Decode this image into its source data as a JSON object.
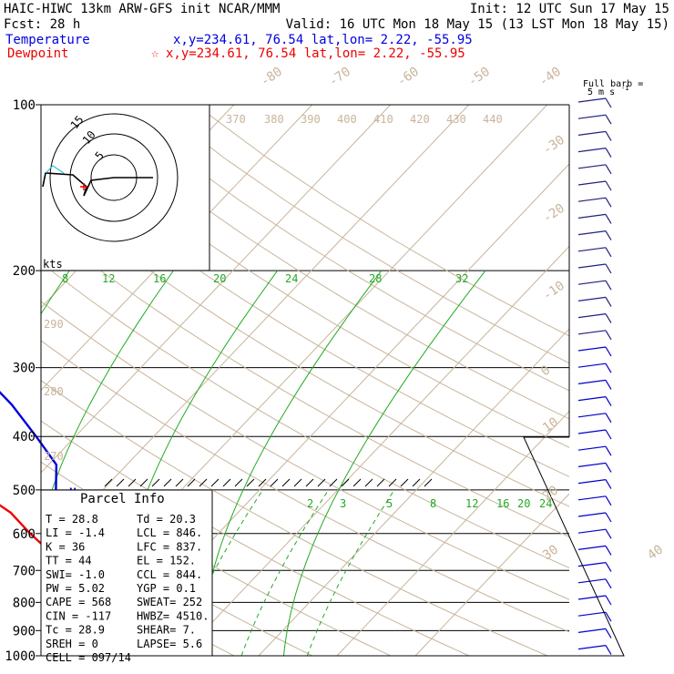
{
  "header": {
    "left_line1": "HAIC-HIWC 13km ARW-GFS init   NCAR/MMM",
    "right_line1": "Init: 12 UTC Sun 17 May 15",
    "left_line2": "Fcst:    28 h",
    "right_line2": "Valid: 16 UTC Mon 18 May 15 (13 LST Mon 18 May 15)",
    "temp_label": "Temperature",
    "temp_loc": "x,y=234.61, 76.54    lat,lon=  2.22, -55.95",
    "dew_label": "Dewpoint",
    "dew_loc": "x,y=234.61, 76.54    lat,lon=  2.22, -55.95",
    "barb_title1": "Full barb =",
    "barb_title2": "5 m s",
    "barb_title_sup": "-1"
  },
  "colors": {
    "temperature": "#0000dd",
    "dewpoint": "#ee0000",
    "isotherm": "#c8b49a",
    "mixing_ratio": "#22aa22",
    "adiabat": "#c8b49a",
    "hodograph": "#000000",
    "barb": "#0000cc",
    "barb_upper": "#202080"
  },
  "chart_data": {
    "type": "line",
    "subtype": "skew-T log-P sounding",
    "pressure_ticks": [
      "100",
      "200",
      "300",
      "400",
      "500",
      "600",
      "700",
      "800",
      "900",
      "1000"
    ],
    "pressure_ylim": [
      100,
      1000
    ],
    "isotherm_labels": [
      "-80",
      "-70",
      "-60",
      "-50",
      "-40",
      "-30",
      "-20",
      "-10",
      "0",
      "10",
      "20",
      "30",
      "40"
    ],
    "theta_labels": [
      "370",
      "380",
      "390",
      "400",
      "410",
      "420",
      "430",
      "440",
      "290",
      "280",
      "270"
    ],
    "mixing_ratio_labels_upper": [
      "8",
      "12",
      "16",
      "20",
      "24",
      "28",
      "32"
    ],
    "mixing_ratio_labels_lower": [
      "2",
      "3",
      "5",
      "8",
      "12",
      "16",
      "20",
      "24"
    ],
    "series": [
      {
        "name": "Temperature",
        "color": "#0000dd",
        "points": [
          {
            "p": 100,
            "T": -82
          },
          {
            "p": 120,
            "T": -77
          },
          {
            "p": 150,
            "T": -67
          },
          {
            "p": 200,
            "T": -54
          },
          {
            "p": 250,
            "T": -41
          },
          {
            "p": 300,
            "T": -31
          },
          {
            "p": 350,
            "T": -22
          },
          {
            "p": 400,
            "T": -15
          },
          {
            "p": 450,
            "T": -9
          },
          {
            "p": 500,
            "T": -6
          },
          {
            "p": 550,
            "T": -2
          },
          {
            "p": 600,
            "T": 1
          },
          {
            "p": 650,
            "T": 4
          },
          {
            "p": 700,
            "T": 7.5
          },
          {
            "p": 750,
            "T": 9.5
          },
          {
            "p": 800,
            "T": 12
          },
          {
            "p": 850,
            "T": 18
          },
          {
            "p": 900,
            "T": 23
          },
          {
            "p": 950,
            "T": 28.8
          }
        ]
      },
      {
        "name": "Dewpoint",
        "color": "#ee0000",
        "points": [
          {
            "p": 100,
            "T": -90
          },
          {
            "p": 120,
            "T": -92
          },
          {
            "p": 150,
            "T": -94
          },
          {
            "p": 180,
            "T": -95
          },
          {
            "p": 200,
            "T": -85
          },
          {
            "p": 220,
            "T": -74
          },
          {
            "p": 250,
            "T": -76
          },
          {
            "p": 280,
            "T": -70
          },
          {
            "p": 300,
            "T": -63
          },
          {
            "p": 350,
            "T": -47
          },
          {
            "p": 400,
            "T": -33
          },
          {
            "p": 450,
            "T": -22
          },
          {
            "p": 500,
            "T": -16
          },
          {
            "p": 550,
            "T": -9
          },
          {
            "p": 600,
            "T": -4
          },
          {
            "p": 650,
            "T": 1
          },
          {
            "p": 700,
            "T": 5
          },
          {
            "p": 750,
            "T": 10
          },
          {
            "p": 800,
            "T": 15
          },
          {
            "p": 850,
            "T": 18
          },
          {
            "p": 900,
            "T": 19
          },
          {
            "p": 950,
            "T": 20.3
          }
        ]
      }
    ],
    "level_labels": [
      {
        "text": "EL",
        "p": 152
      },
      {
        "text": "M",
        "p": 505
      },
      {
        "text": "CCL",
        "p": 844
      },
      {
        "text": "LCL",
        "p": 846
      },
      {
        "text": "LFC",
        "p": 837
      }
    ],
    "hodograph": {
      "ring_labels": [
        "15",
        "10",
        "5"
      ],
      "unit_label": "kts"
    }
  },
  "parcel": {
    "title": "Parcel Info",
    "rows": [
      [
        "T  =     28.8",
        "Td =   20.3"
      ],
      [
        "LI =     -1.4",
        "LCL =  846."
      ],
      [
        "K  =       36",
        "LFC =  837."
      ],
      [
        "TT =       44",
        "EL  =  152."
      ],
      [
        "SWI=     -1.0",
        "CCL =  844."
      ],
      [
        "PW =     5.02",
        "YGP =   0.1"
      ],
      [
        "CAPE =    568",
        "SWEAT=  252"
      ],
      [
        "CIN  =   -117",
        "HWBZ= 4510."
      ],
      [
        "Tc =     28.9",
        "SHEAR=   7."
      ],
      [
        "SREH =      0",
        "LAPSE=  5.6"
      ],
      [
        "CELL = 097/14",
        ""
      ]
    ]
  }
}
